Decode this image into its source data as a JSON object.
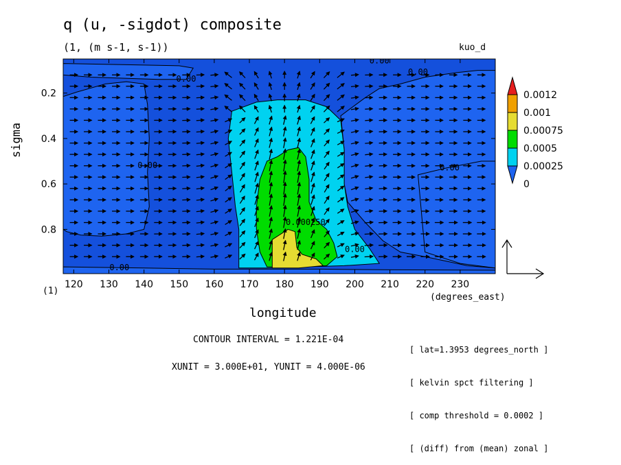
{
  "header": {
    "title": "q (u, -sigdot) composite",
    "subtitle": "(1, (m s-1, s-1))",
    "dataset": "kuo_d"
  },
  "footer": {
    "contour_interval": "CONTOUR INTERVAL = 1.221E-04",
    "unit_scale": "XUNIT = 3.000E+01, YUNIT = 4.000E-06",
    "notes": [
      "[ lat=1.3953 degrees_north ]",
      "[ kelvin spct filtering ]",
      "[ comp threshold = 0.0002 ]",
      "[ (diff) from (mean) zonal ]"
    ]
  },
  "chart_data": {
    "type": "heatmap",
    "title": "q (u, -sigdot) composite",
    "subtitle": "(1, (m s-1, s-1))",
    "xlabel": "longitude",
    "x_units": "(degrees_east)",
    "ylabel": "sigma",
    "y_units": "(1)",
    "xlim": [
      117,
      240
    ],
    "ylim": [
      0.05,
      0.995
    ],
    "y_inverted": true,
    "xticks": [
      120,
      130,
      140,
      150,
      160,
      170,
      180,
      190,
      200,
      210,
      220,
      230
    ],
    "yticks": [
      0.2,
      0.4,
      0.6,
      0.8
    ],
    "ytick_labels": [
      "0.2",
      "0.4",
      "0.6",
      "0.8"
    ],
    "colorbar": {
      "levels": [
        0,
        0.00025,
        0.0005,
        0.00075,
        0.001,
        0.0012
      ],
      "labels": [
        "0",
        "0.00025",
        "0.0005",
        "0.00075",
        "0.001",
        "0.0012"
      ],
      "colors": [
        "#1e64f0",
        "#00d2f0",
        "#00dc00",
        "#e6dc32",
        "#f0a000",
        "#e61e1e"
      ],
      "background_color": "#1450dc"
    },
    "contour_labels": [
      {
        "text": "0.00",
        "x": 207,
        "y": 0.07
      },
      {
        "text": "0.00",
        "x": 218,
        "y": 0.12
      },
      {
        "text": "0.00",
        "x": 152,
        "y": 0.15
      },
      {
        "text": "0.00",
        "x": 141,
        "y": 0.53
      },
      {
        "text": "0.00",
        "x": 227,
        "y": 0.54
      },
      {
        "text": "0.000250",
        "x": 186,
        "y": 0.78
      },
      {
        "text": "0.00",
        "x": 200,
        "y": 0.9
      },
      {
        "text": "0.00",
        "x": 133,
        "y": 0.98
      }
    ],
    "regions": [
      {
        "level": 0,
        "points": [
          [
            117,
            0.215
          ],
          [
            121,
            0.195
          ],
          [
            129,
            0.16
          ],
          [
            135,
            0.15
          ],
          [
            140,
            0.16
          ],
          [
            141,
            0.25
          ],
          [
            141.5,
            0.4
          ],
          [
            141,
            0.55
          ],
          [
            141.5,
            0.7
          ],
          [
            140,
            0.8
          ],
          [
            135,
            0.82
          ],
          [
            128,
            0.83
          ],
          [
            122,
            0.825
          ],
          [
            118,
            0.81
          ],
          [
            117,
            0.8
          ]
        ]
      },
      {
        "level": 0,
        "points": [
          [
            117,
            0.07
          ],
          [
            150,
            0.08
          ],
          [
            154,
            0.09
          ],
          [
            152,
            0.14
          ],
          [
            144,
            0.14
          ],
          [
            125,
            0.13
          ],
          [
            117,
            0.12
          ]
        ]
      },
      {
        "level": 0,
        "points": [
          [
            207,
            0.18
          ],
          [
            213,
            0.16
          ],
          [
            220,
            0.13
          ],
          [
            229,
            0.11
          ],
          [
            235,
            0.1
          ],
          [
            240,
            0.1
          ],
          [
            240,
            0.97
          ],
          [
            232,
            0.96
          ],
          [
            226,
            0.94
          ],
          [
            220,
            0.92
          ],
          [
            213,
            0.9
          ],
          [
            208,
            0.85
          ],
          [
            203,
            0.77
          ],
          [
            198,
            0.68
          ],
          [
            197,
            0.6
          ],
          [
            197,
            0.45
          ],
          [
            196,
            0.3
          ],
          [
            203,
            0.22
          ]
        ]
      },
      {
        "level": 0,
        "points": [
          [
            218,
            0.56
          ],
          [
            226,
            0.53
          ],
          [
            236,
            0.5
          ],
          [
            240,
            0.5
          ],
          [
            240,
            0.97
          ],
          [
            230,
            0.95
          ],
          [
            220,
            0.9
          ]
        ]
      },
      {
        "level": 0,
        "points": [
          [
            117,
            0.965
          ],
          [
            140,
            0.97
          ],
          [
            160,
            0.975
          ],
          [
            175,
            0.975
          ],
          [
            190,
            0.975
          ],
          [
            210,
            0.978
          ],
          [
            240,
            0.98
          ],
          [
            240,
            0.995
          ],
          [
            117,
            0.995
          ]
        ]
      },
      {
        "level": 1,
        "points": [
          [
            165,
            0.28
          ],
          [
            172,
            0.24
          ],
          [
            178,
            0.23
          ],
          [
            186,
            0.23
          ],
          [
            192,
            0.26
          ],
          [
            196,
            0.32
          ],
          [
            197,
            0.45
          ],
          [
            197,
            0.6
          ],
          [
            198,
            0.7
          ],
          [
            200,
            0.8
          ],
          [
            204,
            0.88
          ],
          [
            207,
            0.95
          ],
          [
            197,
            0.96
          ],
          [
            186,
            0.965
          ],
          [
            175,
            0.97
          ],
          [
            167,
            0.97
          ],
          [
            167,
            0.9
          ],
          [
            167,
            0.8
          ],
          [
            166,
            0.7
          ],
          [
            165,
            0.55
          ],
          [
            164,
            0.4
          ]
        ]
      },
      {
        "level": 2,
        "points": [
          [
            173,
            0.58
          ],
          [
            175,
            0.5
          ],
          [
            178,
            0.48
          ],
          [
            181,
            0.45
          ],
          [
            184,
            0.44
          ],
          [
            186,
            0.48
          ],
          [
            187,
            0.58
          ],
          [
            187,
            0.68
          ],
          [
            189,
            0.76
          ],
          [
            192,
            0.8
          ],
          [
            194,
            0.86
          ],
          [
            195,
            0.92
          ],
          [
            192,
            0.96
          ],
          [
            186,
            0.965
          ],
          [
            180,
            0.965
          ],
          [
            175,
            0.965
          ],
          [
            173,
            0.9
          ],
          [
            172,
            0.8
          ],
          [
            172,
            0.7
          ]
        ]
      },
      {
        "level": 3,
        "points": [
          [
            176.5,
            0.845
          ],
          [
            181,
            0.8
          ],
          [
            183,
            0.81
          ],
          [
            183.5,
            0.88
          ],
          [
            185,
            0.91
          ],
          [
            189,
            0.93
          ],
          [
            191,
            0.96
          ],
          [
            184,
            0.97
          ],
          [
            176.5,
            0.97
          ]
        ]
      }
    ],
    "vectors": {
      "note": "wind vector composite (u, -sigdot); reference arrow drawn at lower right",
      "rows": [
        0.12,
        0.17,
        0.22,
        0.27,
        0.32,
        0.37,
        0.42,
        0.47,
        0.52,
        0.57,
        0.62,
        0.67,
        0.72,
        0.77,
        0.82,
        0.87,
        0.92
      ],
      "cols": [
        120,
        124,
        128,
        132,
        136,
        140,
        144,
        148,
        152,
        156,
        160,
        164,
        168,
        172,
        176,
        180,
        184,
        188,
        192,
        196,
        200,
        204,
        208,
        212,
        216,
        220,
        224,
        228,
        232,
        236
      ]
    }
  }
}
